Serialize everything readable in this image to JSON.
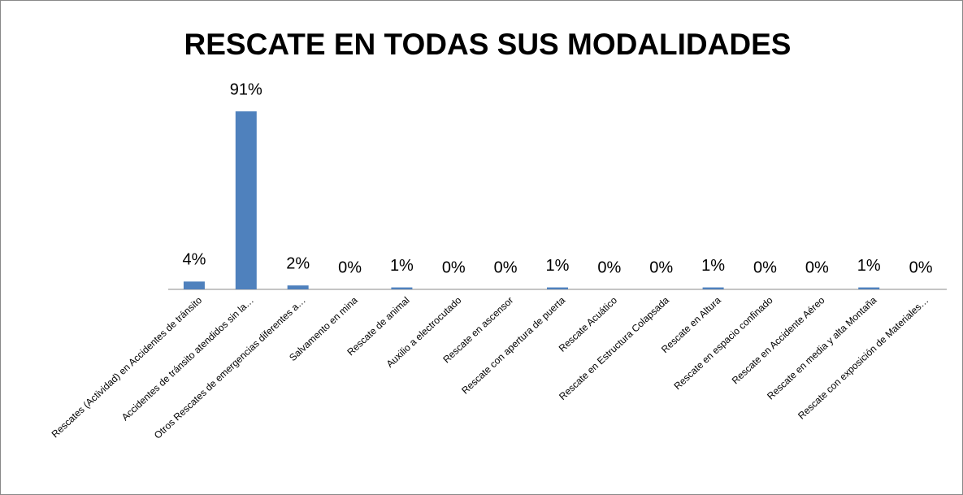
{
  "chart_data": {
    "type": "bar",
    "title": "RESCATE EN TODAS SUS MODALIDADES",
    "categories": [
      "Rescates (Actividad) en Accidentes de tránsito",
      "Accidentes de tránsito atendidos sin la…",
      "Otros Rescates de emergencias diferentes a…",
      "Salvamento en mina",
      "Rescate de animal",
      "Auxilio a electrocutado",
      "Rescate en ascensor",
      "Rescate con apertura de puerta",
      "Rescate Acuático",
      "Rescate en Estructura Colapsada",
      "Rescate en Altura",
      "Rescate en espacio confinado",
      "Rescate en Accidente Aéreo",
      "Rescate en media y alta Montaña",
      "Rescate con exposición de Materiales…"
    ],
    "values": [
      4,
      91,
      2,
      0,
      1,
      0,
      0,
      1,
      0,
      0,
      1,
      0,
      0,
      1,
      0
    ],
    "value_labels": [
      "4%",
      "91%",
      "2%",
      "0%",
      "1%",
      "0%",
      "0%",
      "1%",
      "0%",
      "0%",
      "1%",
      "0%",
      "0%",
      "1%",
      "0%"
    ],
    "color": "#4f81bd"
  }
}
